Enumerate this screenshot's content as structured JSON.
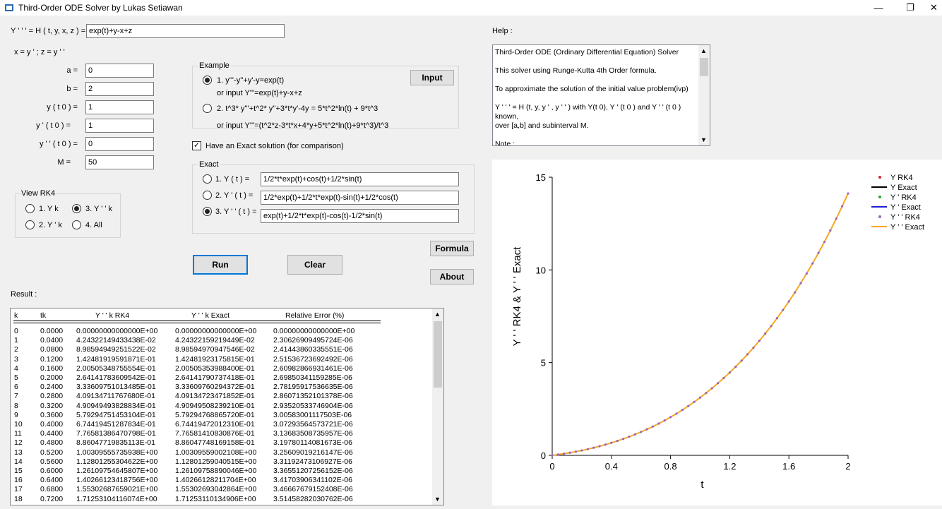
{
  "window": {
    "title": "Third-Order ODE Solver by Lukas Setiawan",
    "min": "—",
    "max": "❐",
    "close": "✕"
  },
  "equation": {
    "label": "Y ' ' ' = H ( t, y, x, z ) =",
    "value": "exp(t)+y-x+z",
    "subst": "x = y ' ;    z = y ' '"
  },
  "params": [
    {
      "label": "a =",
      "value": "0"
    },
    {
      "label": "b =",
      "value": "2"
    },
    {
      "label": "y ( t 0 ) =",
      "value": "1"
    },
    {
      "label": "y ' ( t 0 ) =",
      "value": "1"
    },
    {
      "label": "y ' ' ( t 0 ) =",
      "value": "0"
    },
    {
      "label": "M =",
      "value": "50"
    }
  ],
  "example": {
    "title": "Example",
    "opt1": "1. y'''-y''+y'-y=exp(t)",
    "opt1_sub": "or input Y'''=exp(t)+y-x+z",
    "opt2": "2. t^3* y'''+t^2* y''+3*t*y'-4y = 5*t^2*ln(t) + 9*t^3",
    "opt2_sub": "or input Y'''=(t^2*z-3*t*x+4*y+5*t^2*ln(t)+9*t^3)/t^3",
    "input_btn": "Input",
    "selected": 1
  },
  "exact_check": {
    "label": "Have an Exact solution (for comparison)",
    "checked": true
  },
  "exact": {
    "title": "Exact",
    "items": [
      {
        "label": "1. Y  ( t ) =",
        "value": "1/2*t*exp(t)+cos(t)+1/2*sin(t)"
      },
      {
        "label": "2.  Y ' ( t ) =",
        "value": "1/2*exp(t)+1/2*t*exp(t)-sin(t)+1/2*cos(t)"
      },
      {
        "label": "3.  Y ' ' ( t ) =",
        "value": "exp(t)+1/2*t*exp(t)-cos(t)-1/2*sin(t)"
      }
    ],
    "selected": 3
  },
  "view": {
    "title": "View RK4",
    "opts": [
      "1. Y k",
      "3. Y ' ' k",
      "2. Y ' k",
      "4. All"
    ],
    "selected": "3. Y ' ' k"
  },
  "buttons": {
    "run": "Run",
    "clear": "Clear",
    "formula": "Formula",
    "about": "About"
  },
  "result": {
    "label": "Result :",
    "headers": [
      "k",
      "tk",
      "Y ' ' k RK4",
      "Y ' ' k Exact",
      "Relative Error (%)"
    ],
    "rows": [
      [
        "0",
        "0.0000",
        "0.00000000000000E+00",
        "0.00000000000000E+00",
        "0.00000000000000E+00"
      ],
      [
        "1",
        "0.0400",
        "4.24322149433438E-02",
        "4.24322159219449E-02",
        "2.30626909495724E-06"
      ],
      [
        "2",
        "0.0800",
        "8.98594949251522E-02",
        "8.98594970947546E-02",
        "2.41443860335551E-06"
      ],
      [
        "3",
        "0.1200",
        "1.42481919591871E-01",
        "1.42481923175815E-01",
        "2.51536723692492E-06"
      ],
      [
        "4",
        "0.1600",
        "2.00505348755554E-01",
        "2.00505353988400E-01",
        "2.60982866931461E-06"
      ],
      [
        "5",
        "0.2000",
        "2.64141783609542E-01",
        "2.64141790737418E-01",
        "2.69850341159285E-06"
      ],
      [
        "6",
        "0.2400",
        "3.33609751013485E-01",
        "3.33609760294372E-01",
        "2.78195917536635E-06"
      ],
      [
        "7",
        "0.2800",
        "4.09134711767680E-01",
        "4.09134723471852E-01",
        "2.86071352101378E-06"
      ],
      [
        "8",
        "0.3200",
        "4.90949493828834E-01",
        "4.90949508239210E-01",
        "2.93520533746904E-06"
      ],
      [
        "9",
        "0.3600",
        "5.79294751453104E-01",
        "5.79294768865720E-01",
        "3.00583001117503E-06"
      ],
      [
        "10",
        "0.4000",
        "6.74419451287834E-01",
        "6.74419472012310E-01",
        "3.07293564573721E-06"
      ],
      [
        "11",
        "0.4400",
        "7.76581386470798E-01",
        "7.76581410830876E-01",
        "3.13683508735957E-06"
      ],
      [
        "12",
        "0.4800",
        "8.86047719835113E-01",
        "8.86047748169158E-01",
        "3.19780114081673E-06"
      ],
      [
        "13",
        "0.5200",
        "1.00309555735938E+00",
        "1.00309559002108E+00",
        "3.25609019216147E-06"
      ],
      [
        "14",
        "0.5600",
        "1.12801255304622E+00",
        "1.12801259040515E+00",
        "3.31192473106927E-06"
      ],
      [
        "15",
        "0.6000",
        "1.26109754645807E+00",
        "1.26109758890046E+00",
        "3.36551207256152E-06"
      ],
      [
        "16",
        "0.6400",
        "1.40266123418756E+00",
        "1.40266128211704E+00",
        "3.41703906341102E-06"
      ],
      [
        "17",
        "0.6800",
        "1.55302687659021E+00",
        "1.55302693042864E+00",
        "3.46667679152408E-06"
      ],
      [
        "18",
        "0.7200",
        "1.71253104116074E+00",
        "1.71253110134906E+00",
        "3.51458282030762E-06"
      ]
    ]
  },
  "help": {
    "label": "Help :",
    "lines": [
      "Third-Order ODE (Ordinary Differential Equation) Solver",
      "",
      "This solver using Runge-Kutta 4th Order formula.",
      "",
      "   To approximate the solution of the initial value problem(ivp)",
      "",
      "Y ' ' ' = H (t, y, y ' , y ' ' ) with Y(t 0), Y ' (t 0 ) and Y ' ' (t 0 )",
      "known,",
      "over [a,b] and subinterval M.",
      "",
      "Note :"
    ]
  },
  "colors": {
    "rk4_y": "#d62728",
    "exact_y": "#000000",
    "rk4_dy": "#2ca02c",
    "exact_dy": "#1f1fd6",
    "rk4_ddy": "#9467bd",
    "exact_ddy": "#f5a623"
  },
  "chart_data": {
    "type": "line",
    "title": "",
    "xlabel": "t",
    "ylabel": "Y ' ' RK4 & Y ' ' Exact",
    "xlim": [
      0,
      2
    ],
    "ylim": [
      0,
      15
    ],
    "xticks": [
      "0",
      "0.4",
      "0.8",
      "1.2",
      "1.6",
      "2"
    ],
    "yticks": [
      "0",
      "5",
      "10",
      "15"
    ],
    "legend": {
      "placement": "top-right",
      "entries": [
        "Y RK4",
        "Y Exact",
        "Y ' RK4",
        "Y ' Exact",
        "Y ' ' RK4",
        "Y ' ' Exact"
      ]
    },
    "series": [
      {
        "name": "Y ' ' RK4",
        "x": [
          0,
          0.04,
          0.08,
          0.12,
          0.16,
          0.2,
          0.24,
          0.28,
          0.32,
          0.36,
          0.4,
          0.44,
          0.48,
          0.52,
          0.56,
          0.6,
          0.64,
          0.68,
          0.72,
          0.76,
          0.8,
          0.84,
          0.88,
          0.92,
          0.96,
          1.0,
          1.04,
          1.08,
          1.12,
          1.16,
          1.2,
          1.24,
          1.28,
          1.32,
          1.36,
          1.4,
          1.44,
          1.48,
          1.52,
          1.56,
          1.6,
          1.64,
          1.68,
          1.72,
          1.76,
          1.8,
          1.84,
          1.88,
          1.92,
          1.96,
          2.0
        ],
        "y": [
          0,
          0.0424,
          0.0899,
          0.1425,
          0.2005,
          0.2641,
          0.3336,
          0.4091,
          0.4909,
          0.5793,
          0.6744,
          0.7766,
          0.886,
          1.0031,
          1.128,
          1.2611,
          1.4027,
          1.553,
          1.7125,
          1.8815,
          2.0603,
          2.2492,
          2.4487,
          2.6591,
          2.8807,
          3.1139,
          3.3591,
          3.6167,
          3.8871,
          4.1708,
          4.4681,
          4.7796,
          5.1057,
          5.4468,
          5.8036,
          6.1764,
          6.5659,
          6.9726,
          7.3971,
          7.8399,
          8.3018,
          8.7834,
          9.2852,
          9.8081,
          10.3527,
          10.9199,
          11.5103,
          12.1249,
          12.7644,
          13.4298,
          14.1221
        ]
      },
      {
        "name": "Y ' ' Exact",
        "x": [
          0,
          0.04,
          0.08,
          0.12,
          0.16,
          0.2,
          0.24,
          0.28,
          0.32,
          0.36,
          0.4,
          0.44,
          0.48,
          0.52,
          0.56,
          0.6,
          0.64,
          0.68,
          0.72,
          0.76,
          0.8,
          0.84,
          0.88,
          0.92,
          0.96,
          1.0,
          1.04,
          1.08,
          1.12,
          1.16,
          1.2,
          1.24,
          1.28,
          1.32,
          1.36,
          1.4,
          1.44,
          1.48,
          1.52,
          1.56,
          1.6,
          1.64,
          1.68,
          1.72,
          1.76,
          1.8,
          1.84,
          1.88,
          1.92,
          1.96,
          2.0
        ],
        "y": [
          0,
          0.0424,
          0.0899,
          0.1425,
          0.2005,
          0.2641,
          0.3336,
          0.4091,
          0.4909,
          0.5793,
          0.6744,
          0.7766,
          0.886,
          1.0031,
          1.128,
          1.2611,
          1.4027,
          1.553,
          1.7125,
          1.8815,
          2.0603,
          2.2492,
          2.4487,
          2.6591,
          2.8807,
          3.1139,
          3.3591,
          3.6167,
          3.8871,
          4.1708,
          4.4681,
          4.7796,
          5.1057,
          5.4468,
          5.8036,
          6.1764,
          6.5659,
          6.9726,
          7.3971,
          7.8399,
          8.3018,
          8.7834,
          9.2852,
          9.8081,
          10.3527,
          10.9199,
          11.5103,
          12.1249,
          12.7644,
          13.4298,
          14.1221
        ]
      }
    ]
  }
}
